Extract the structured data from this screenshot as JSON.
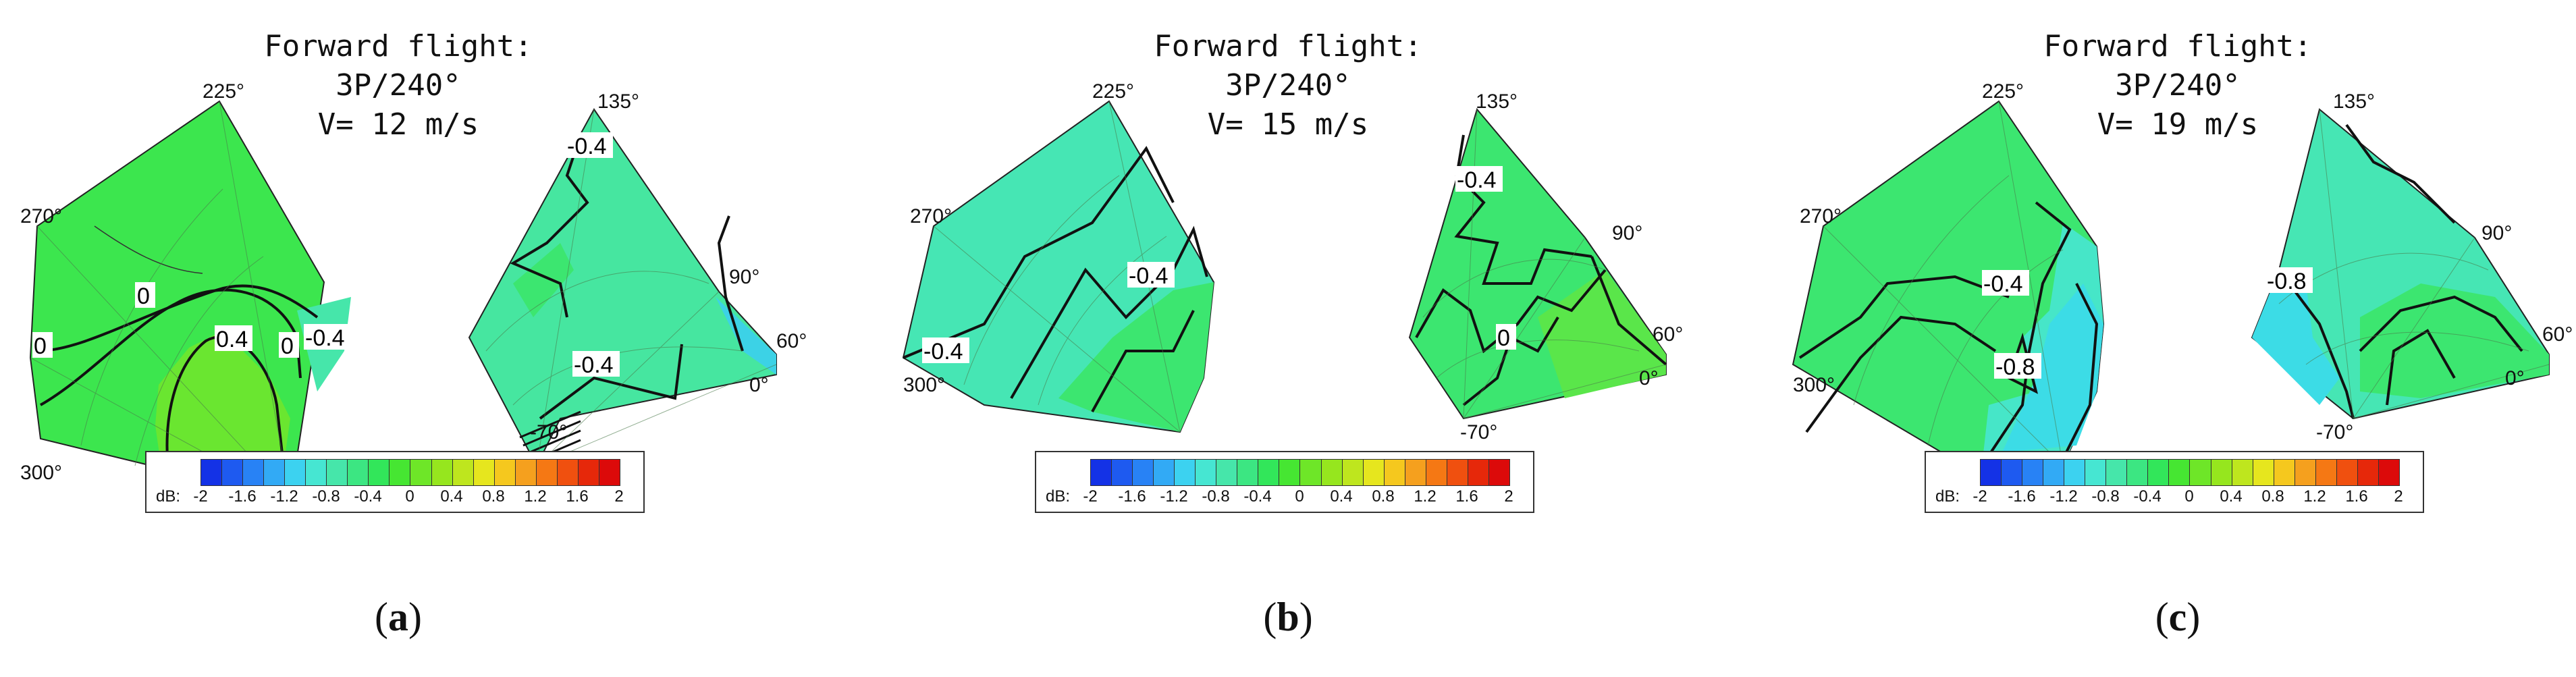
{
  "chart_data": [
    {
      "type": "polar contour",
      "caption": "a",
      "title_lines": [
        "Forward flight:",
        "3P/240°",
        "V= 12 m/s"
      ],
      "colorbar": {
        "label": "dB:",
        "ticks": [
          "-2",
          "-1.6",
          "-1.2",
          "-0.8",
          "-0.4",
          "0",
          "0.4",
          "0.8",
          "1.2",
          "1.6",
          "2"
        ],
        "colors": [
          "#1432e6",
          "#1e5af0",
          "#2882f5",
          "#32aaf5",
          "#3cd2f0",
          "#46e6d2",
          "#46e6aa",
          "#3ce682",
          "#32e65a",
          "#46e632",
          "#6ee628",
          "#96e61e",
          "#bee61e",
          "#e6e61e",
          "#f5c81e",
          "#f5a01e",
          "#f57814",
          "#f0500f",
          "#e6280a",
          "#dc0a0a"
        ]
      },
      "left_angle_labels": [
        "225°",
        "270°",
        "300°"
      ],
      "right_angle_labels": [
        "135°",
        "90°",
        "60°",
        "0°",
        "-70°"
      ],
      "contour_labels": [
        "0",
        "0.4",
        "0",
        "-0.4",
        "0",
        "-0.4",
        "-0.4"
      ]
    },
    {
      "type": "polar contour",
      "caption": "b",
      "title_lines": [
        "Forward flight:",
        "3P/240°",
        "V= 15 m/s"
      ],
      "colorbar": {
        "label": "dB:",
        "ticks": [
          "-2",
          "-1.6",
          "-1.2",
          "-0.8",
          "-0.4",
          "0",
          "0.4",
          "0.8",
          "1.2",
          "1.6",
          "2"
        ],
        "colors": [
          "#1432e6",
          "#1e5af0",
          "#2882f5",
          "#32aaf5",
          "#3cd2f0",
          "#46e6d2",
          "#46e6aa",
          "#3ce682",
          "#32e65a",
          "#46e632",
          "#6ee628",
          "#96e61e",
          "#bee61e",
          "#e6e61e",
          "#f5c81e",
          "#f5a01e",
          "#f57814",
          "#f0500f",
          "#e6280a",
          "#dc0a0a"
        ]
      },
      "left_angle_labels": [
        "225°",
        "270°",
        "300°"
      ],
      "right_angle_labels": [
        "135°",
        "90°",
        "60°",
        "0°",
        "-70°"
      ],
      "contour_labels": [
        "-0.4",
        "-0.4",
        "-0.4",
        "0"
      ]
    },
    {
      "type": "polar contour",
      "caption": "c",
      "title_lines": [
        "Forward flight:",
        "3P/240°",
        "V= 19 m/s"
      ],
      "colorbar": {
        "label": "dB:",
        "ticks": [
          "-2",
          "-1.6",
          "-1.2",
          "-0.8",
          "-0.4",
          "0",
          "0.4",
          "0.8",
          "1.2",
          "1.6",
          "2"
        ],
        "colors": [
          "#1432e6",
          "#1e5af0",
          "#2882f5",
          "#32aaf5",
          "#3cd2f0",
          "#46e6d2",
          "#46e6aa",
          "#3ce682",
          "#32e65a",
          "#46e632",
          "#6ee628",
          "#96e61e",
          "#bee61e",
          "#e6e61e",
          "#f5c81e",
          "#f5a01e",
          "#f57814",
          "#f0500f",
          "#e6280a",
          "#dc0a0a"
        ]
      },
      "left_angle_labels": [
        "225°",
        "270°",
        "300°"
      ],
      "right_angle_labels": [
        "135°",
        "90°",
        "60°",
        "0°",
        "-70°"
      ],
      "contour_labels": [
        "-0.4",
        "-0.8",
        "-0.8"
      ]
    }
  ]
}
